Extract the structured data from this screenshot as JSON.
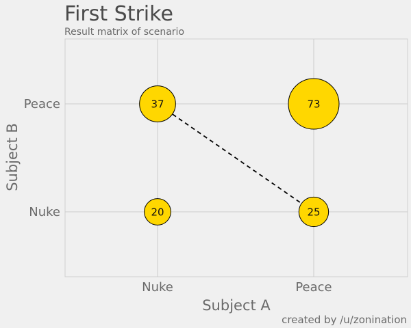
{
  "chart_data": {
    "type": "scatter",
    "title": "First Strike",
    "subtitle": "Result matrix of scenario",
    "xlabel": "Subject A",
    "ylabel": "Subject B",
    "x_categories": [
      "Nuke",
      "Peace"
    ],
    "y_categories": [
      "Nuke",
      "Peace"
    ],
    "points": [
      {
        "x": "Nuke",
        "y": "Peace",
        "value": 37
      },
      {
        "x": "Peace",
        "y": "Peace",
        "value": 73
      },
      {
        "x": "Nuke",
        "y": "Nuke",
        "value": 20
      },
      {
        "x": "Peace",
        "y": "Nuke",
        "value": 25
      }
    ],
    "connector": {
      "from": {
        "x": "Nuke",
        "y": "Peace"
      },
      "to": {
        "x": "Peace",
        "y": "Nuke"
      },
      "style": "dashed"
    },
    "grid": true,
    "colors": {
      "bubble": "#ffd700",
      "bubble_stroke": "#000000",
      "connector": "#000000"
    }
  },
  "credit": "created by /u/zonination"
}
